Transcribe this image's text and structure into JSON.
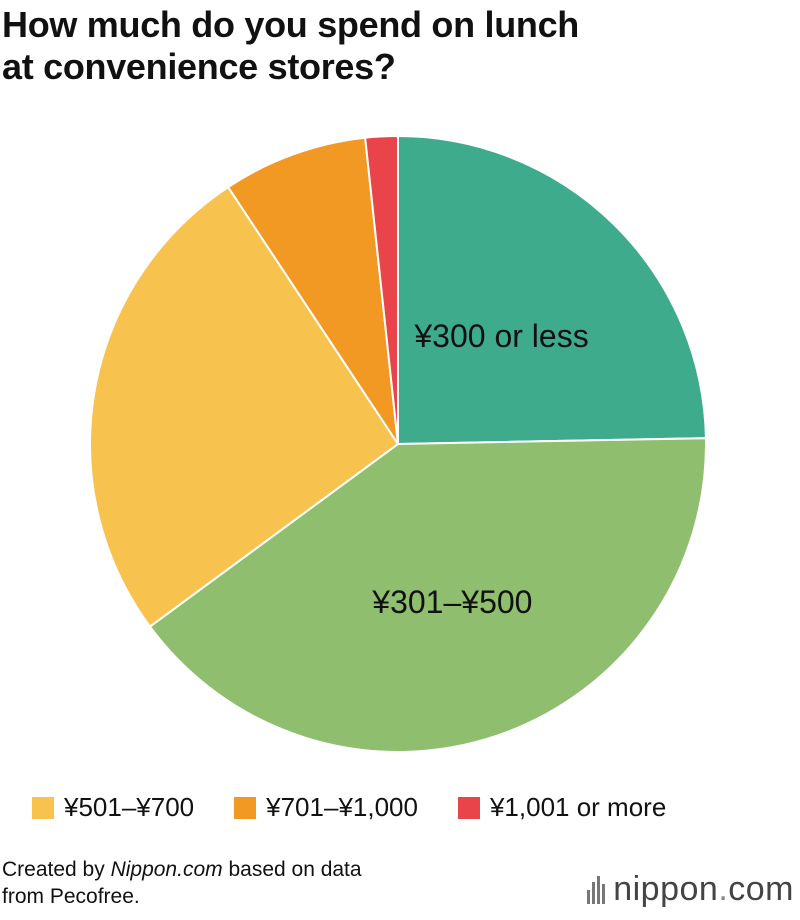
{
  "title": {
    "line1": "How much do you spend on lunch",
    "line2": "at convenience stores?"
  },
  "chart_data": {
    "type": "pie",
    "title": "How much do you spend on lunch at convenience stores?",
    "categories": [
      "¥300 or less",
      "¥301–¥500",
      "¥501–¥700",
      "¥701–¥1,000",
      "¥1,001 or more"
    ],
    "values": [
      24.7,
      40.2,
      25.8,
      7.6,
      1.7
    ],
    "colors": [
      "#3fab8d",
      "#8fbf6e",
      "#f7c34e",
      "#f29924",
      "#e8444a"
    ],
    "start": "12 o'clock, clockwise",
    "legend": "bottom",
    "in_slice_labels": [
      "¥300 or less",
      "¥301–¥500"
    ]
  },
  "legend": [
    {
      "label": "¥501–¥700",
      "color": "#f7c34e"
    },
    {
      "label": "¥701–¥1,000",
      "color": "#f29924"
    },
    {
      "label": "¥1,001 or more",
      "color": "#e8444a"
    }
  ],
  "source": {
    "prefix": "Created by ",
    "site": "Nippon.com",
    "suffix": " based on data",
    "line2": "from Pecofree."
  },
  "brand": {
    "name": "nippon",
    "dot": ".",
    "tld": "com",
    "icon": "nippon-bars-icon"
  }
}
